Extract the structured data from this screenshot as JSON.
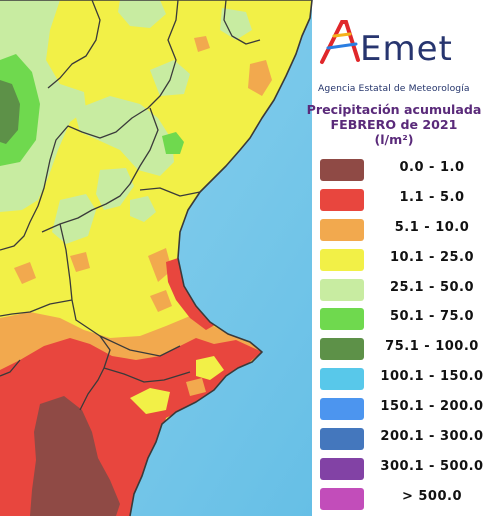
{
  "organization": {
    "logo_text": "AEmet",
    "subtitle": "Agencia Estatal de Meteorología"
  },
  "legend": {
    "title_line1": "Precipitación acumulada",
    "title_line2": "FEBRERO de 2021",
    "unit": "(l/m²)",
    "items": [
      {
        "label": "0.0 - 1.0",
        "color": "#8f4a45"
      },
      {
        "label": "1.1 - 5.0",
        "color": "#e8463e"
      },
      {
        "label": "5.1 - 10.0",
        "color": "#f2a94e"
      },
      {
        "label": "10.1 - 25.0",
        "color": "#f2f047"
      },
      {
        "label": "25.1 - 50.0",
        "color": "#c8eca1"
      },
      {
        "label": "50.1 - 75.0",
        "color": "#6fd94e"
      },
      {
        "label": "75.1 - 100.0",
        "color": "#5d9148"
      },
      {
        "label": "100.1 - 150.0",
        "color": "#58c8ea"
      },
      {
        "label": "150.1 - 200.0",
        "color": "#4c95ef"
      },
      {
        "label": "200.1 - 300.0",
        "color": "#4477bd"
      },
      {
        "label": "300.1 - 500.0",
        "color": "#8242a5"
      },
      {
        "label": "> 500.0",
        "color": "#c24dba"
      }
    ]
  },
  "map_colors": {
    "sea": "#74c6e9",
    "land_outside": "#ffffff",
    "border": "#3a3a3a"
  }
}
